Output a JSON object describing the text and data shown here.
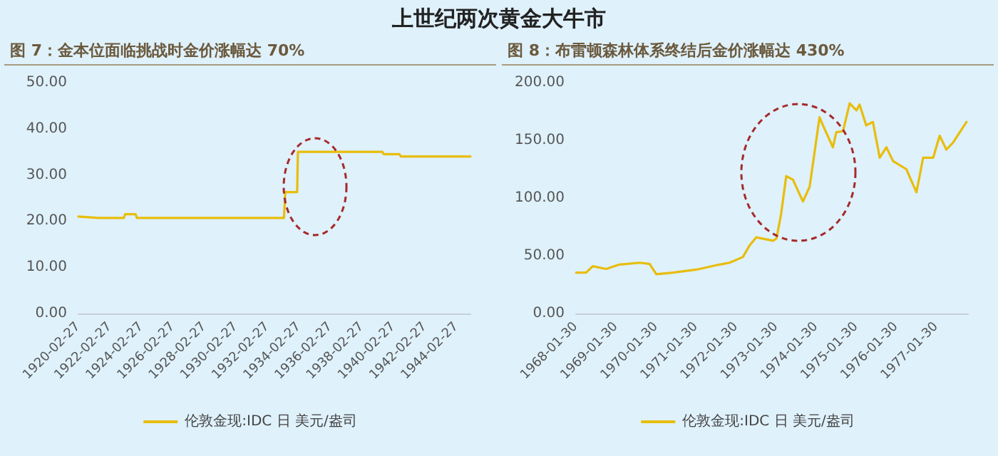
{
  "chart_data": [
    {
      "type": "line",
      "annotations": [
        "上世纪两次黄金大牛市"
      ],
      "title": "图 7：金本位面临挑战时金价涨幅达 70%",
      "x": [
        "1920-02-27",
        "1921-06-01",
        "1923-01-15",
        "1923-02-15",
        "1923-10-15",
        "1923-11-15",
        "1933-03-15",
        "1933-04-15",
        "1934-01-15",
        "1934-02-01",
        "1939-06-15",
        "1939-07-15",
        "1940-07-15",
        "1940-08-15",
        "1945-01-15"
      ],
      "series": [
        {
          "name": "伦敦金现:IDC 日 美元/盎司",
          "color": "#e8bd0c",
          "values": [
            21,
            20.7,
            20.7,
            21.5,
            21.5,
            20.7,
            20.7,
            26.3,
            26.3,
            35,
            35,
            34.5,
            34.5,
            34,
            34
          ]
        }
      ],
      "xlim": [
        "1920-02-27",
        "1945-01-15"
      ],
      "xticks": [
        {
          "value": "1920-02-27",
          "label": "1920-02-27"
        },
        {
          "value": "1922-02-27",
          "label": "1922-02-27"
        },
        {
          "value": "1924-02-27",
          "label": "1924-02-27"
        },
        {
          "value": "1926-02-27",
          "label": "1926-02-27"
        },
        {
          "value": "1928-02-27",
          "label": "1928-02-27"
        },
        {
          "value": "1930-02-27",
          "label": "1930-02-27"
        },
        {
          "value": "1932-02-27",
          "label": "1932-02-27"
        },
        {
          "value": "1934-02-27",
          "label": "1934-02-27"
        },
        {
          "value": "1936-02-27",
          "label": "1936-02-27"
        },
        {
          "value": "1938-02-27",
          "label": "1938-02-27"
        },
        {
          "value": "1940-02-27",
          "label": "1940-02-27"
        },
        {
          "value": "1942-02-27",
          "label": "1942-02-27"
        },
        {
          "value": "1944-02-27",
          "label": "1944-02-27"
        }
      ],
      "ylim": [
        0,
        50
      ],
      "yticks": [
        {
          "value": 0,
          "label": "0.00"
        },
        {
          "value": 10,
          "label": "10.00"
        },
        {
          "value": 20,
          "label": "20.00"
        },
        {
          "value": 30,
          "label": "30.00"
        },
        {
          "value": 40,
          "label": "40.00"
        },
        {
          "value": 50,
          "label": "50.00"
        }
      ],
      "grid": false,
      "legend": "bottom",
      "marker": "none",
      "line_style": "solid"
    },
    {
      "type": "line",
      "title": "图 8：布雷顿森林体系终结后金价涨幅达 430%",
      "x": [
        "1968-02-01",
        "1968-05-01",
        "1968-07-01",
        "1968-11-01",
        "1969-03-01",
        "1969-09-01",
        "1969-12-01",
        "1970-02-01",
        "1970-07-01",
        "1971-02-01",
        "1971-08-01",
        "1971-12-01",
        "1972-04-01",
        "1972-06-01",
        "1972-08-01",
        "1973-01-01",
        "1973-02-01",
        "1973-03-15",
        "1973-05-01",
        "1973-07-01",
        "1973-10-01",
        "1973-12-01",
        "1974-03-01",
        "1974-04-01",
        "1974-07-01",
        "1974-08-01",
        "1974-10-01",
        "1974-12-01",
        "1975-02-01",
        "1975-03-01",
        "1975-05-01",
        "1975-07-01",
        "1975-09-01",
        "1975-11-01",
        "1976-01-01",
        "1976-05-01",
        "1976-08-01",
        "1976-09-01",
        "1976-10-01",
        "1977-01-01",
        "1977-03-01",
        "1977-05-01",
        "1977-07-01",
        "1977-11-01"
      ],
      "series": [
        {
          "name": "伦敦金现:IDC 日 美元/盎司",
          "color": "#e8bd0c",
          "values": [
            35.4,
            35.4,
            41,
            38.6,
            42.4,
            44,
            43,
            34,
            35.4,
            38,
            41.8,
            44,
            49,
            59,
            66,
            63,
            65,
            86,
            119,
            116,
            97,
            110,
            170,
            163,
            144,
            157,
            158,
            182,
            176,
            181,
            163,
            166,
            135,
            144,
            132,
            125,
            105,
            120,
            135,
            135,
            154,
            142,
            148,
            166
          ]
        }
      ],
      "xlim": [
        "1968-01-30",
        "1977-11-15"
      ],
      "xticks": [
        {
          "value": "1968-01-30",
          "label": "1968-01-30"
        },
        {
          "value": "1969-01-30",
          "label": "1969-01-30"
        },
        {
          "value": "1970-01-30",
          "label": "1970-01-30"
        },
        {
          "value": "1971-01-30",
          "label": "1971-01-30"
        },
        {
          "value": "1972-01-30",
          "label": "1972-01-30"
        },
        {
          "value": "1973-01-30",
          "label": "1973-01-30"
        },
        {
          "value": "1974-01-30",
          "label": "1974-01-30"
        },
        {
          "value": "1975-01-30",
          "label": "1975-01-30"
        },
        {
          "value": "1976-01-30",
          "label": "1976-01-30"
        },
        {
          "value": "1977-01-30",
          "label": "1977-01-30"
        }
      ],
      "ylim": [
        0,
        200
      ],
      "yticks": [
        {
          "value": 0,
          "label": "0.00"
        },
        {
          "value": 50,
          "label": "50.00"
        },
        {
          "value": 100,
          "label": "100.00"
        },
        {
          "value": 150,
          "label": "150.00"
        },
        {
          "value": 200,
          "label": "200.00"
        }
      ],
      "grid": false,
      "legend": "bottom",
      "marker": "none",
      "line_style": "solid"
    }
  ]
}
